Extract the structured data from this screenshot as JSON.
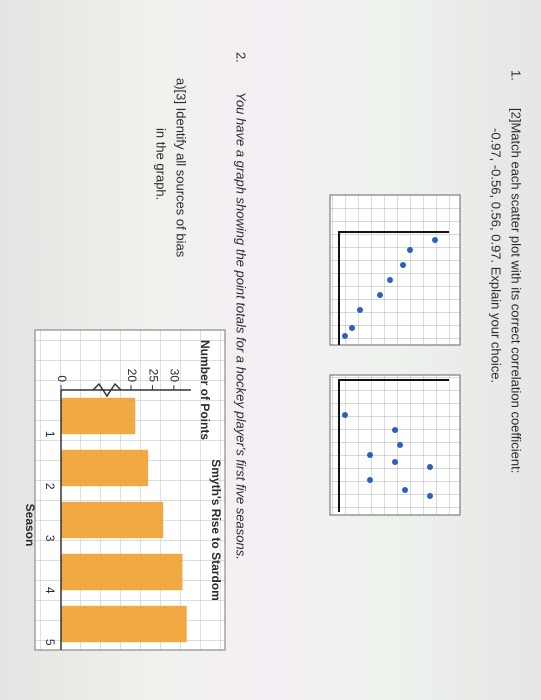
{
  "questions": [
    {
      "number": "1.",
      "text": "[2]Match each scatter plot with its correct correlation coefficient:",
      "text2": "-0.97, -0.56, 0.56, 0.97. Explain your choice."
    },
    {
      "number": "2.",
      "text": "You have a graph showing the point totals for a hockey player's first five seasons.",
      "part": "a)[3] Identify all sources of bias",
      "part2": "in the graph."
    }
  ],
  "chart_data": {
    "type": "bar",
    "title": "Smyth's Rise to Stardom",
    "y_label": "Number of Points",
    "x_label": "Season",
    "categories": [
      "1",
      "2",
      "3",
      "4",
      "5"
    ],
    "values": [
      21,
      24,
      27.5,
      32,
      33
    ],
    "color": "#f0a030",
    "ylim": [
      0,
      34
    ],
    "yticks": [
      0,
      20,
      25,
      30
    ],
    "axis_break": true
  }
}
